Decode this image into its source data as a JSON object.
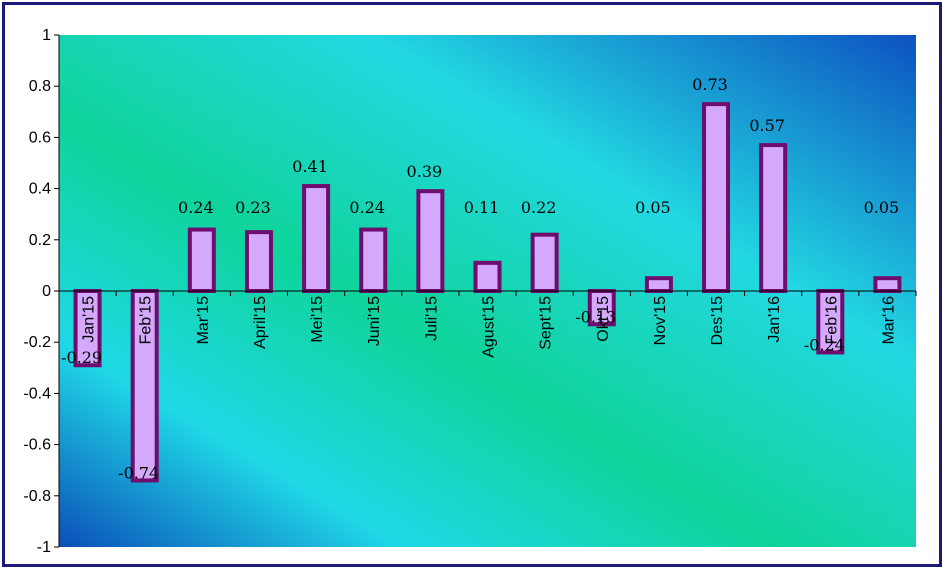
{
  "chart_data": {
    "type": "bar",
    "categories": [
      "Jan'15",
      "Feb'15",
      "Mar'15",
      "April'15",
      "Mei'15",
      "Juni'15",
      "Juli'15",
      "Agust'15",
      "Sept'15",
      "Okt'15",
      "Nov'15",
      "Des'15",
      "Jan'16",
      "Feb'16",
      "Mar'16"
    ],
    "values": [
      -0.29,
      -0.74,
      0.24,
      0.23,
      0.41,
      0.24,
      0.39,
      0.11,
      0.22,
      -0.13,
      0.05,
      0.73,
      0.57,
      -0.24,
      0.05
    ],
    "data_labels": [
      "-0.29",
      "-0.74",
      "0.24",
      "0.23",
      "0.41",
      "0.24",
      "0.39",
      "0.11",
      "0.22",
      "-0.13",
      "0.05",
      "0.73",
      "0.57",
      "-0.24",
      "0.05"
    ],
    "ylim": [
      -1,
      1
    ],
    "yticks": [
      "1",
      "0.8",
      "0.6",
      "0.4",
      "0.2",
      "0",
      "-0.2",
      "-0.4",
      "-0.6",
      "-0.8",
      "-1"
    ],
    "title": "",
    "xlabel": "",
    "ylabel": "",
    "grid": false,
    "colors": {
      "bar_fill": "#d4a8fa",
      "bar_edge": "#6e0d6e",
      "plot_gradient": [
        "#0b4fb8",
        "#1fd8e6",
        "#0fd49a",
        "#22d8e2",
        "#0d52c0"
      ],
      "frame": "#1a1a7a"
    }
  }
}
